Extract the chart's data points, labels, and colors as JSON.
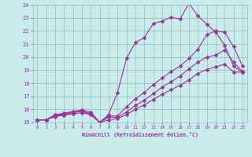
{
  "xlabel": "Windchill (Refroidissement éolien,°C)",
  "background_color": "#c8ecec",
  "grid_color": "#9bbaba",
  "line_color": "#993399",
  "markersize": 2.5,
  "linewidth": 0.8,
  "xlim": [
    -0.5,
    23.5
  ],
  "ylim": [
    15,
    24
  ],
  "yticks": [
    15,
    16,
    17,
    18,
    19,
    20,
    21,
    22,
    23,
    24
  ],
  "xticks": [
    0,
    1,
    2,
    3,
    4,
    5,
    6,
    7,
    8,
    9,
    10,
    11,
    12,
    13,
    14,
    15,
    16,
    17,
    18,
    19,
    20,
    21,
    22,
    23
  ],
  "lines": [
    {
      "x": [
        0,
        1,
        2,
        3,
        4,
        5,
        6,
        7,
        8,
        9,
        10,
        11,
        12,
        13,
        14,
        15,
        16,
        17,
        18,
        19,
        20,
        21,
        22,
        23
      ],
      "y": [
        15.2,
        15.2,
        15.6,
        15.7,
        15.85,
        15.95,
        15.8,
        15.0,
        15.6,
        17.3,
        19.9,
        21.1,
        21.5,
        22.55,
        22.75,
        23.05,
        22.9,
        24.1,
        23.15,
        22.5,
        21.9,
        20.9,
        19.3,
        18.85
      ]
    },
    {
      "x": [
        0,
        1,
        2,
        3,
        4,
        5,
        6,
        7,
        8,
        9,
        10,
        11,
        12,
        13,
        14,
        15,
        16,
        17,
        18,
        19,
        20,
        21,
        22,
        23
      ],
      "y": [
        15.2,
        15.2,
        15.55,
        15.65,
        15.8,
        15.9,
        15.65,
        15.0,
        15.5,
        15.5,
        16.2,
        16.8,
        17.3,
        17.9,
        18.4,
        18.9,
        19.3,
        19.9,
        20.6,
        21.7,
        22.0,
        21.9,
        20.8,
        19.3
      ]
    },
    {
      "x": [
        0,
        1,
        2,
        3,
        4,
        5,
        6,
        7,
        8,
        9,
        10,
        11,
        12,
        13,
        14,
        15,
        16,
        17,
        18,
        19,
        20,
        21,
        22,
        23
      ],
      "y": [
        15.2,
        15.2,
        15.5,
        15.6,
        15.75,
        15.85,
        15.65,
        15.0,
        15.4,
        15.4,
        15.8,
        16.3,
        16.7,
        17.2,
        17.7,
        18.1,
        18.55,
        19.1,
        19.6,
        20.0,
        20.15,
        20.55,
        19.6,
        18.9
      ]
    },
    {
      "x": [
        0,
        1,
        2,
        3,
        4,
        5,
        6,
        7,
        8,
        9,
        10,
        11,
        12,
        13,
        14,
        15,
        16,
        17,
        18,
        19,
        20,
        21,
        22,
        23
      ],
      "y": [
        15.2,
        15.2,
        15.45,
        15.55,
        15.65,
        15.75,
        15.6,
        15.0,
        15.2,
        15.3,
        15.6,
        16.0,
        16.35,
        16.75,
        17.15,
        17.5,
        17.85,
        18.25,
        18.75,
        19.05,
        19.25,
        19.45,
        18.85,
        18.85
      ]
    }
  ]
}
